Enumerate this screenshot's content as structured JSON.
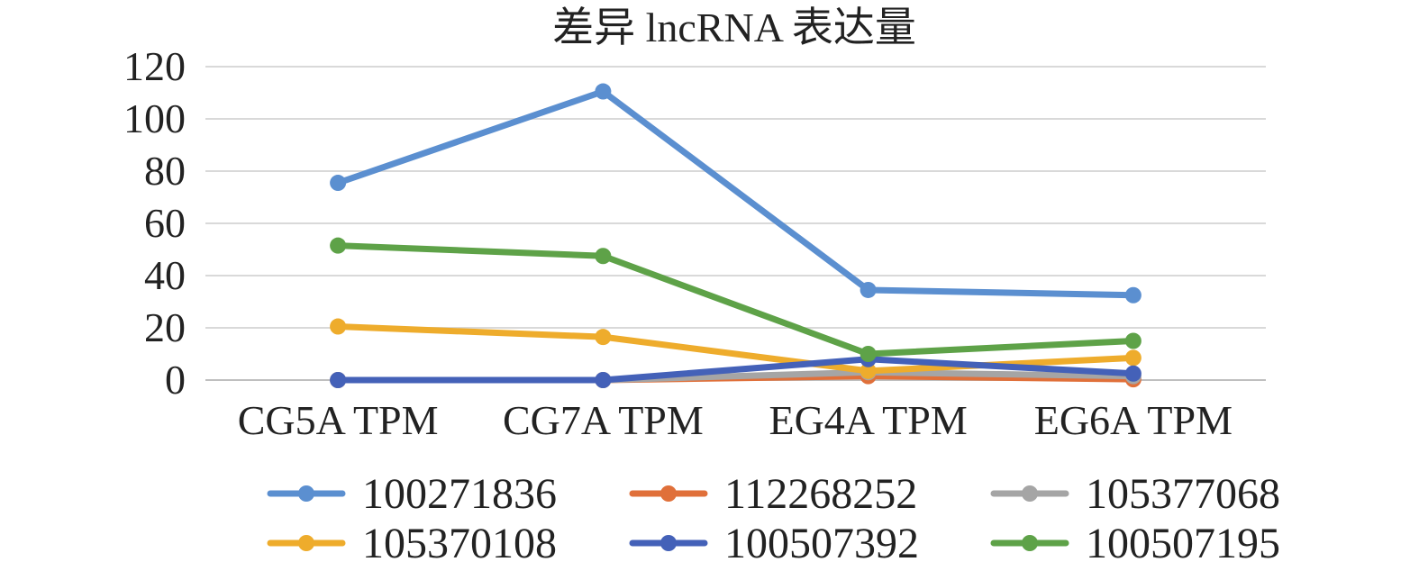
{
  "chart_data": {
    "type": "line",
    "title": "差异 lncRNA 表达量",
    "xlabel": "",
    "ylabel": "",
    "categories": [
      "CG5A TPM",
      "CG7A TPM",
      "EG4A TPM",
      "EG6A TPM"
    ],
    "ylim": [
      0,
      120
    ],
    "yticks": [
      0,
      20,
      40,
      60,
      80,
      100,
      120
    ],
    "grid": true,
    "legend_position": "bottom",
    "series": [
      {
        "name": "100271836",
        "color": "#5b8fd0",
        "values": [
          75.5,
          110.5,
          34.5,
          32.5
        ]
      },
      {
        "name": "112268252",
        "color": "#e0703a",
        "values": [
          0,
          0,
          1.5,
          0.3
        ]
      },
      {
        "name": "105377068",
        "color": "#a5a5a5",
        "values": [
          0,
          0,
          3.0,
          1.5
        ]
      },
      {
        "name": "105370108",
        "color": "#eeac2c",
        "values": [
          20.5,
          16.5,
          3.5,
          8.5
        ]
      },
      {
        "name": "100507392",
        "color": "#4461b8",
        "values": [
          0,
          0,
          8.0,
          2.5
        ]
      },
      {
        "name": "100507195",
        "color": "#5ea248",
        "values": [
          51.5,
          47.5,
          10.0,
          15.0
        ]
      }
    ]
  }
}
